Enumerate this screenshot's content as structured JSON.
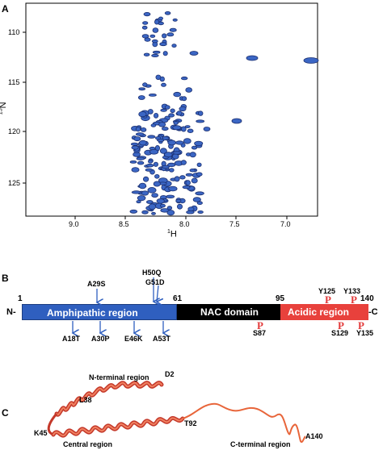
{
  "panel_a": {
    "label": "A",
    "xaxis": {
      "title_sup": "1",
      "title_main": "H",
      "ticks": [
        "9.0",
        "8.5",
        "8.0",
        "7.5",
        "7.0"
      ]
    },
    "yaxis": {
      "title_sup": "15",
      "title_main": "N",
      "ticks": [
        "110",
        "115",
        "120",
        "125"
      ]
    }
  },
  "panel_b": {
    "label": "B",
    "n_term": "N-",
    "c_term": "-C",
    "positions": [
      "1",
      "61",
      "95",
      "140"
    ],
    "regions": [
      {
        "name": "Amphipathic region",
        "color": "#2f5fbf"
      },
      {
        "name": "NAC domain",
        "color": "#000000"
      },
      {
        "name": "Acidic region",
        "color": "#e8413c"
      }
    ],
    "mutations_above": [
      "A29S",
      "H50Q",
      "G51D"
    ],
    "mutations_below": [
      "A18T",
      "A30P",
      "E46K",
      "A53T"
    ],
    "phospho_marker": "P",
    "phospho_sites": [
      "S87",
      "Y125",
      "Y133",
      "S129",
      "Y135"
    ]
  },
  "panel_c": {
    "label": "C",
    "labels": {
      "n_region": "N-terminal region",
      "d2": "D2",
      "l38": "L38",
      "k45": "K45",
      "central": "Central region",
      "t92": "T92",
      "c_region": "C-terminal region",
      "a140": "A140"
    }
  }
}
